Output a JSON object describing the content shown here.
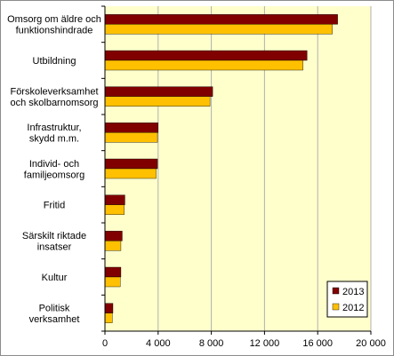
{
  "chart_data": {
    "type": "bar",
    "orientation": "horizontal",
    "categories": [
      [
        "Omsorg om äldre och",
        "funktionshindrade"
      ],
      [
        "Utbildning"
      ],
      [
        "Förskoleverksamhet",
        "och skolbarnomsorg"
      ],
      [
        "Infrastruktur,",
        "skydd m.m."
      ],
      [
        "Individ- och",
        "familjeomsorg"
      ],
      [
        "Fritid"
      ],
      [
        "Särskilt riktade",
        "insatser"
      ],
      [
        "Kultur"
      ],
      [
        "Politisk",
        "verksamhet"
      ]
    ],
    "series": [
      {
        "name": "2013",
        "color": "#800000",
        "values": [
          17500,
          15200,
          8100,
          4000,
          3950,
          1500,
          1300,
          1200,
          600
        ]
      },
      {
        "name": "2012",
        "color": "#ffc000",
        "values": [
          17100,
          14900,
          7900,
          3950,
          3850,
          1450,
          1200,
          1150,
          550
        ]
      }
    ],
    "xlim": [
      0,
      20000
    ],
    "xticks": [
      0,
      4000,
      8000,
      12000,
      16000,
      20000
    ],
    "xtick_labels": [
      "0",
      "4 000",
      "8 000",
      "12 000",
      "16 000",
      "20 000"
    ],
    "grid": true,
    "plot_background": "#ffffcc",
    "legend_position": "bottom-right",
    "title": "",
    "xlabel": "",
    "ylabel": ""
  }
}
